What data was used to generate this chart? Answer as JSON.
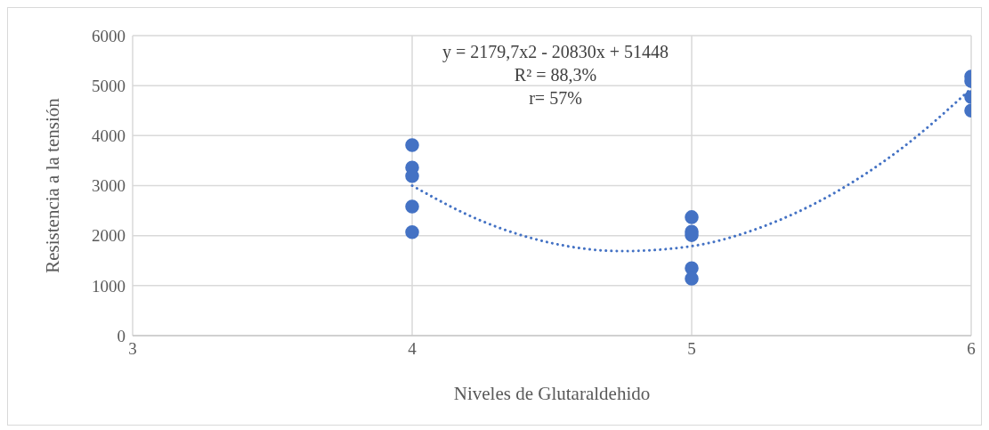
{
  "chart_data": {
    "type": "scatter",
    "xlabel": "Niveles de Glutaraldehido",
    "ylabel": "Resistencia a la tensión",
    "xlim": [
      3,
      6
    ],
    "xticks": [
      3,
      4,
      5,
      6
    ],
    "ylim": [
      0,
      6000
    ],
    "yticks": [
      0,
      1000,
      2000,
      3000,
      4000,
      5000,
      6000
    ],
    "grid": true,
    "legend": false,
    "marker": "circle",
    "annotations": [
      "y = 2179,7x2 - 20830x + 51448",
      "R² = 88,3%",
      "r= 57%"
    ],
    "series": [
      {
        "color": "#4472c4",
        "x": [
          4,
          4,
          4,
          4,
          4,
          5,
          5,
          5,
          5,
          5,
          6,
          6,
          6,
          6
        ],
        "values": [
          3810,
          3360,
          3190,
          2580,
          2070,
          2370,
          2080,
          2010,
          1350,
          1140,
          5180,
          5090,
          4770,
          4500
        ]
      },
      {
        "type": "line",
        "color": "#4472c4",
        "line_style": "dotted",
        "marker": "none",
        "x": [
          4,
          4.25,
          4.5,
          4.75,
          5,
          5.25,
          5.5,
          5.75,
          6
        ],
        "values": [
          3000,
          2290,
          1850,
          1690,
          1790,
          2170,
          2820,
          3740,
          4940
        ]
      }
    ]
  }
}
